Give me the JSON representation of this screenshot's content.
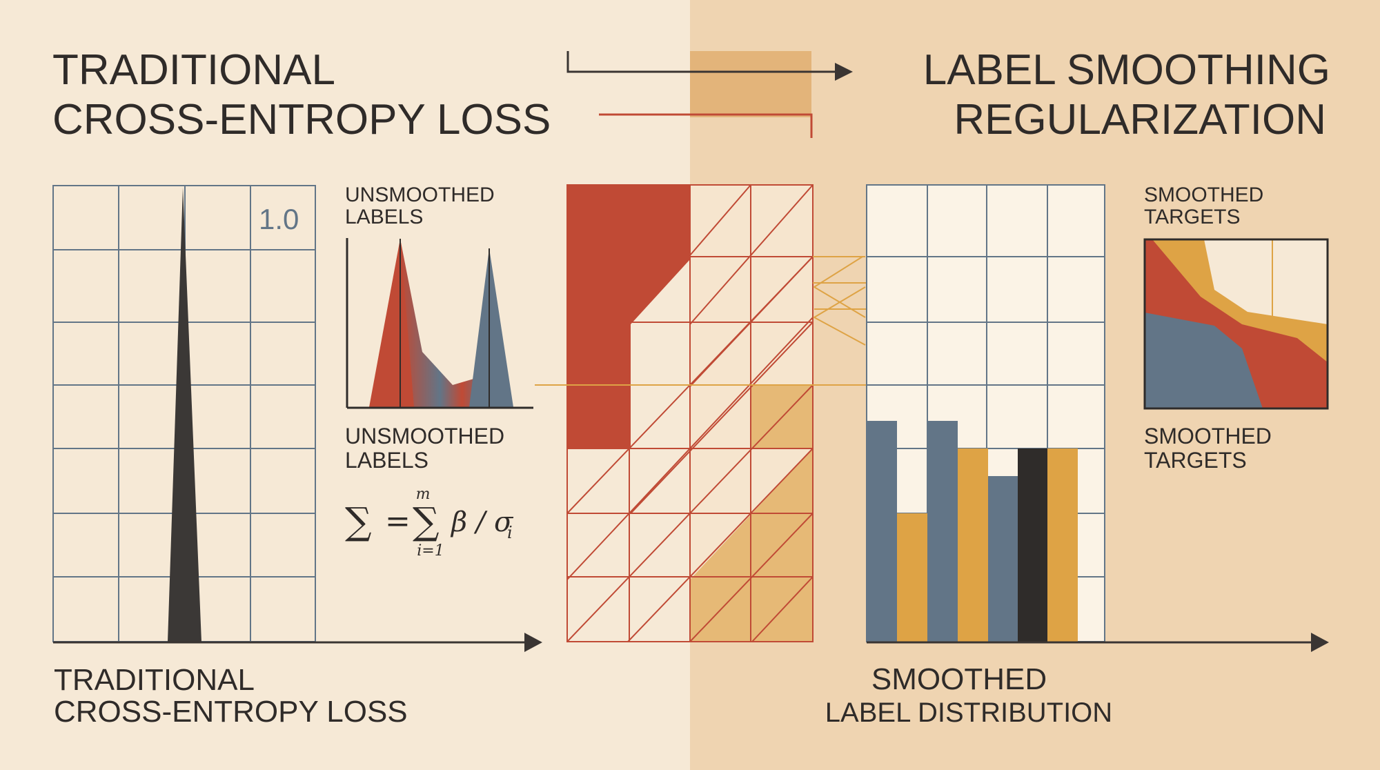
{
  "left": {
    "title_line1": "TRADITIONAL",
    "title_line2": "CROSS-ENTROPY LOSS",
    "peak_value_label": "1.0",
    "inset_title_line1": "UNSMOOTHED",
    "inset_title_line2": "LABELS",
    "caption_mid_line1": "UNSMOOTHED",
    "caption_mid_line2": "LABELS",
    "formula": {
      "lhs": "∑",
      "equals": "=",
      "sum": "∑",
      "upper": "m",
      "lower": "i=1",
      "term": "β / σ",
      "subscript": "i"
    },
    "caption_bottom_line1": "TRADITIONAL",
    "caption_bottom_line2": "CROSS-ENTROPY LOSS"
  },
  "right": {
    "title_line1": "LABEL SMOOTHING",
    "title_line2": "REGULARIZATION",
    "inset_title_line1": "SMOOTHED",
    "inset_title_line2": "TARGETS",
    "caption_mid_line1": "SMOOTHED",
    "caption_mid_line2": "TARGETS",
    "caption_bottom_line1": "SMOOTHED",
    "caption_bottom_line2": "LABEL DISTRIBUTION"
  },
  "colors": {
    "background_left": "#f6e9d6",
    "background_right": "#efd4b1",
    "red": "#c04a35",
    "mustard": "#dea345",
    "slate": "#627587",
    "charcoal": "#2f2c2a",
    "grid": "#627587"
  }
}
